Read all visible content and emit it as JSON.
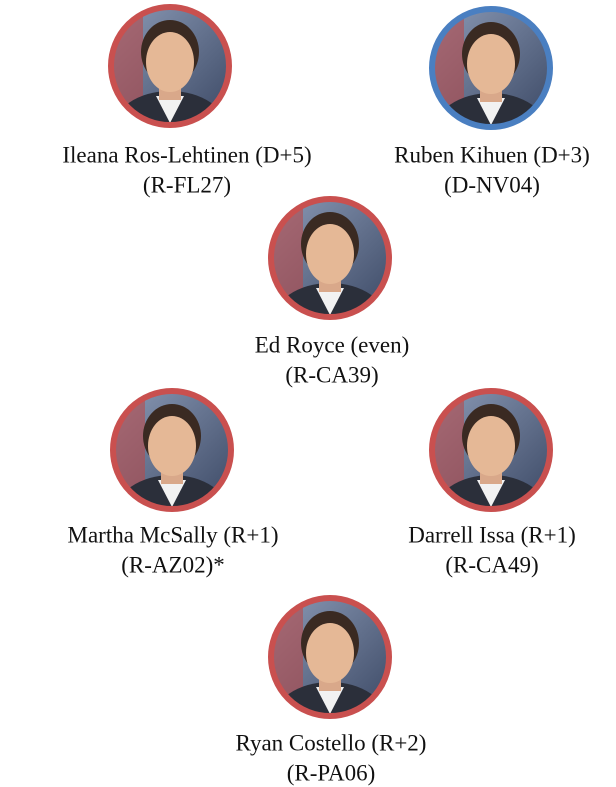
{
  "people": [
    {
      "name": "Ileana Ros-Lehtinen (D+5)",
      "district": "(R-FL27)"
    },
    {
      "name": "Ruben Kihuen (D+3)",
      "district": "(D-NV04)"
    },
    {
      "name": "Ed Royce (even)",
      "district": "(R-CA39)"
    },
    {
      "name": "Martha McSally (R+1)",
      "district": "(R-AZ02)*"
    },
    {
      "name": "Darrell Issa (R+1)",
      "district": "(R-CA49)"
    },
    {
      "name": "Ryan Costello (R+2)",
      "district": "(R-PA06)"
    }
  ]
}
